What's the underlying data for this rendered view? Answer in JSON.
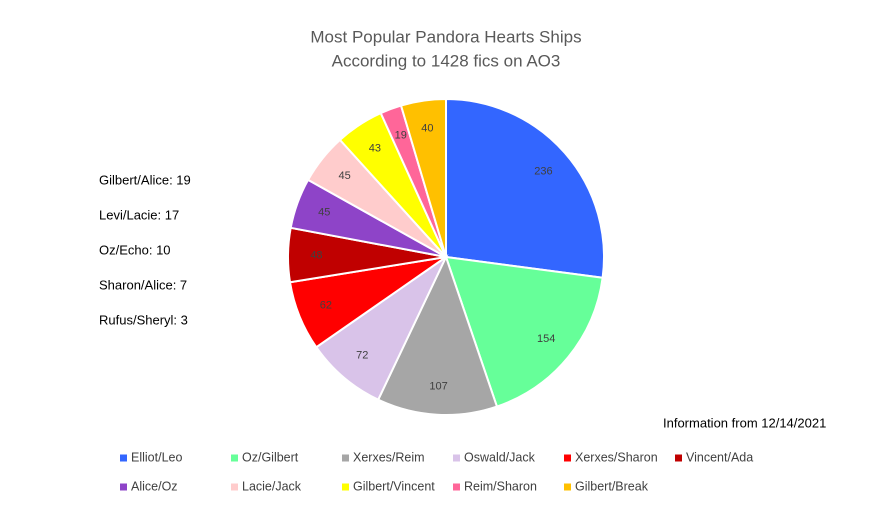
{
  "chart_data": {
    "type": "pie",
    "title": [
      "Most Popular Pandora Hearts Ships",
      "According to 1428 fics on AO3"
    ],
    "categories": [
      "Elliot/Leo",
      "Oz/Gilbert",
      "Xerxes/Reim",
      "Oswald/Jack",
      "Xerxes/Sharon",
      "Vincent/Ada",
      "Alice/Oz",
      "Lacie/Jack",
      "Gilbert/Vincent",
      "Reim/Sharon",
      "Gilbert/Break"
    ],
    "values": [
      236,
      154,
      107,
      72,
      62,
      48,
      45,
      45,
      43,
      19,
      40
    ],
    "colors": [
      "#3366ff",
      "#66ff99",
      "#a6a6a6",
      "#d9c3e9",
      "#ff0000",
      "#c00000",
      "#8e44c8",
      "#ffcccc",
      "#ffff00",
      "#ff6699",
      "#ffc000"
    ],
    "annotations": [
      "Gilbert/Alice: 19",
      "Levi/Lacie: 17",
      "Oz/Echo: 10",
      "Sharon/Alice: 7",
      "Rufus/Sheryl: 3"
    ],
    "note": "Information from 12/14/2021"
  }
}
